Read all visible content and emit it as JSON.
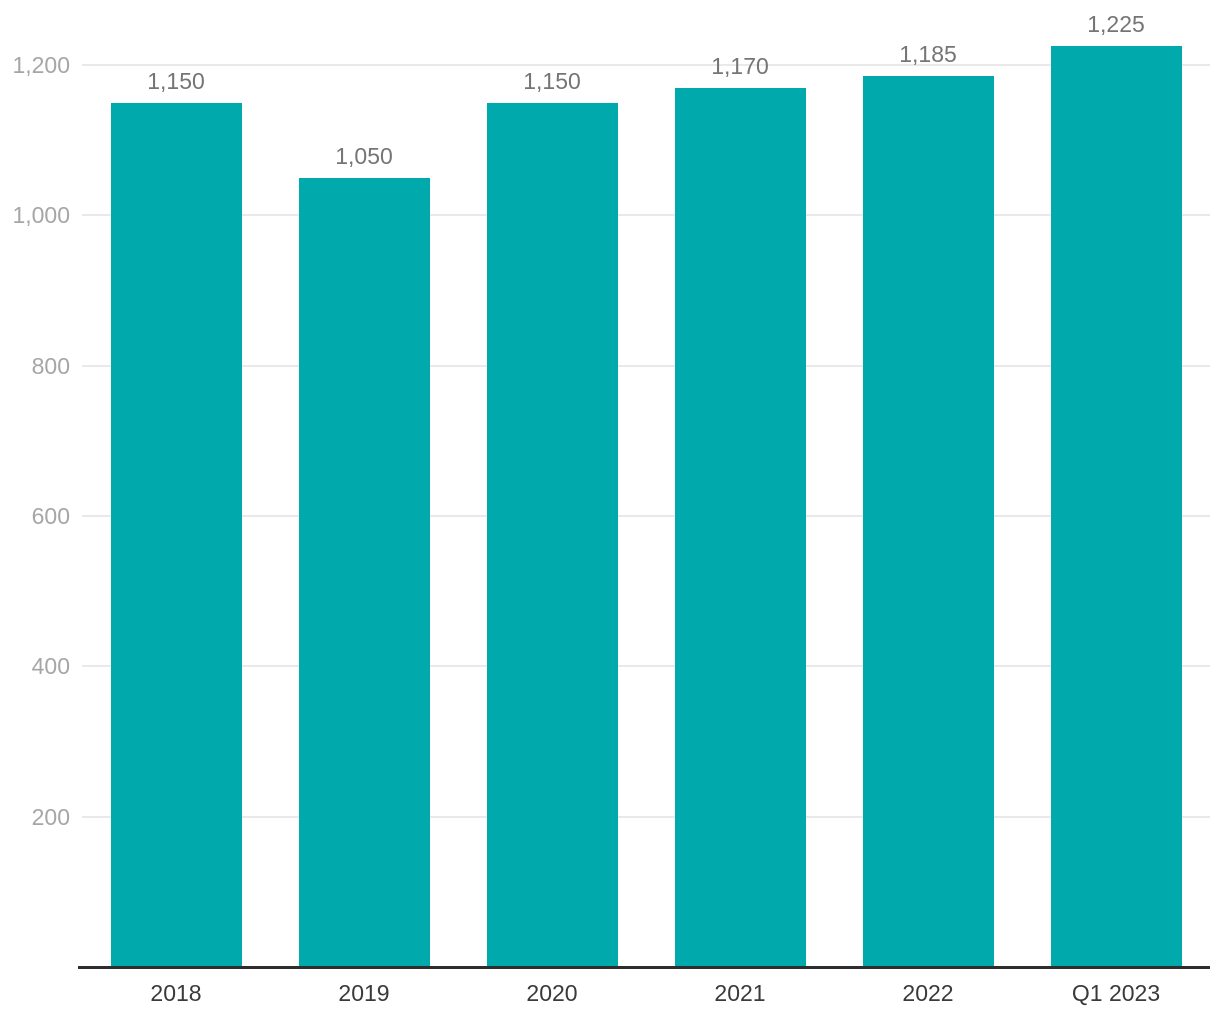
{
  "chart_data": {
    "type": "bar",
    "title": "",
    "xlabel": "",
    "ylabel": "",
    "categories": [
      "2018",
      "2019",
      "2020",
      "2021",
      "2022",
      "Q1 2023"
    ],
    "values": [
      1150,
      1050,
      1150,
      1170,
      1185,
      1225
    ],
    "value_labels": [
      "1,150",
      "1,050",
      "1,150",
      "1,170",
      "1,185",
      "1,225"
    ],
    "y_ticks": [
      200,
      400,
      600,
      800,
      1000,
      1200
    ],
    "y_tick_labels": [
      "200",
      "400",
      "600",
      "800",
      "1,000",
      "1,200"
    ],
    "ylim": [
      0,
      1200
    ],
    "grid": true,
    "legend": false,
    "colors": {
      "bar": "#00A9AB",
      "gridline": "#e9e9e9",
      "axis_line": "#2e2e2e",
      "y_tick_label": "#a6a6a6",
      "x_tick_label": "#3a3a3a",
      "data_label": "#757575",
      "background": "#ffffff"
    }
  }
}
